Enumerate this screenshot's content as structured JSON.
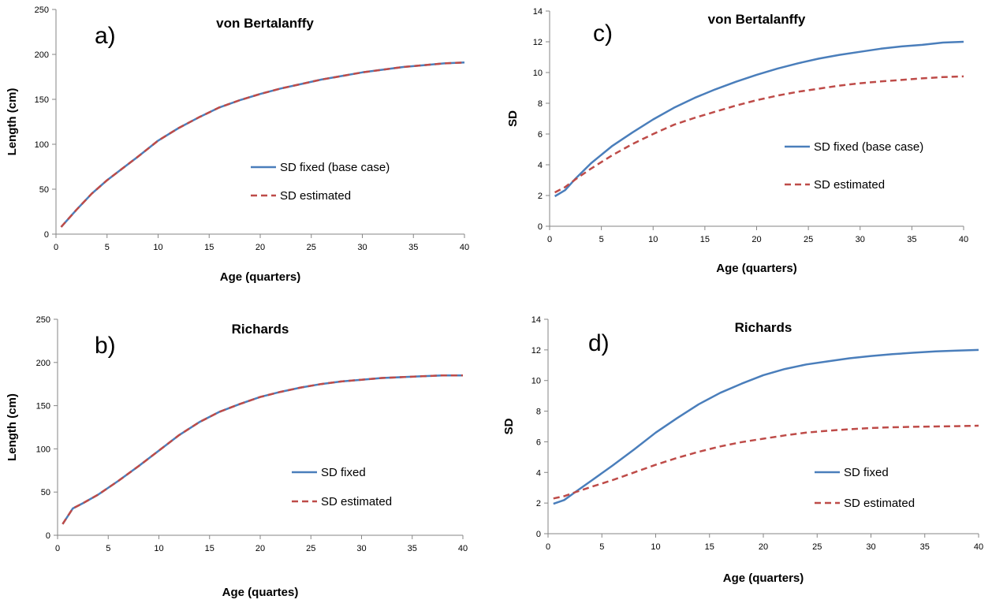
{
  "colors": {
    "fixed": "#4a7ebb",
    "estimated": "#be4b48",
    "axis": "#868686"
  },
  "charts": [
    {
      "panel_label": "a)",
      "title": "von Bertalanffy",
      "xlabel": "Age (quarters)",
      "ylabel": "Length (cm)",
      "xticks": [
        "0",
        "5",
        "10",
        "15",
        "20",
        "25",
        "30",
        "35",
        "40"
      ],
      "yticks": [
        "0",
        "50",
        "100",
        "150",
        "200",
        "250"
      ],
      "legend": [
        "SD fixed (base case)",
        "SD estimated"
      ]
    },
    {
      "panel_label": "b)",
      "title": "Richards",
      "xlabel": "Age  (quartes)",
      "ylabel": "Length (cm)",
      "xticks": [
        "0",
        "5",
        "10",
        "15",
        "20",
        "25",
        "30",
        "35",
        "40"
      ],
      "yticks": [
        "0",
        "50",
        "100",
        "150",
        "200",
        "250"
      ],
      "legend": [
        "SD fixed",
        "SD estimated"
      ]
    },
    {
      "panel_label": "c)",
      "title": "von Bertalanffy",
      "xlabel": "Age (quarters)",
      "ylabel": "SD",
      "xticks": [
        "0",
        "5",
        "10",
        "15",
        "20",
        "25",
        "30",
        "35",
        "40"
      ],
      "yticks": [
        "0",
        "2",
        "4",
        "6",
        "8",
        "10",
        "12",
        "14"
      ],
      "legend": [
        "SD fixed (base case)",
        "SD estimated"
      ]
    },
    {
      "panel_label": "d)",
      "title": "Richards",
      "xlabel": "Age (quarters)",
      "ylabel": "SD",
      "xticks": [
        "0",
        "5",
        "10",
        "15",
        "20",
        "25",
        "30",
        "35",
        "40"
      ],
      "yticks": [
        "0",
        "2",
        "4",
        "6",
        "8",
        "10",
        "12",
        "14"
      ],
      "legend": [
        "SD fixed",
        "SD estimated"
      ]
    }
  ],
  "chart_data": [
    {
      "type": "line",
      "title": "von Bertalanffy",
      "xlabel": "Age (quarters)",
      "ylabel": "Length (cm)",
      "xlim": [
        0,
        40
      ],
      "ylim": [
        0,
        250
      ],
      "legend_position": "right-middle",
      "series": [
        {
          "name": "SD fixed (base case)",
          "style": "solid",
          "x": [
            0.5,
            2,
            3.5,
            5,
            6.5,
            8,
            10,
            12,
            14,
            16,
            18,
            20,
            22,
            24,
            26,
            28,
            30,
            32,
            34,
            36,
            38,
            40
          ],
          "y": [
            8,
            27,
            45,
            60,
            73,
            86,
            104,
            118,
            130,
            141,
            149,
            156,
            162,
            167,
            172,
            176,
            180,
            183,
            186,
            188,
            190,
            191
          ]
        },
        {
          "name": "SD estimated",
          "style": "dashed",
          "x": [
            0.5,
            2,
            3.5,
            5,
            6.5,
            8,
            10,
            12,
            14,
            16,
            18,
            20,
            22,
            24,
            26,
            28,
            30,
            32,
            34,
            36,
            38,
            40
          ],
          "y": [
            8,
            27,
            45,
            60,
            73,
            86,
            104,
            118,
            130,
            141,
            149,
            156,
            162,
            167,
            172,
            176,
            180,
            183,
            186,
            188,
            190,
            191
          ]
        }
      ]
    },
    {
      "type": "line",
      "title": "Richards",
      "xlabel": "Age  (quartes)",
      "ylabel": "Length (cm)",
      "xlim": [
        0,
        40
      ],
      "ylim": [
        0,
        250
      ],
      "legend_position": "right-middle",
      "series": [
        {
          "name": "SD fixed",
          "style": "solid",
          "x": [
            0.5,
            1.5,
            2.5,
            4,
            6,
            8,
            10,
            12,
            14,
            16,
            18,
            20,
            22,
            24,
            26,
            28,
            30,
            32,
            34,
            36,
            38,
            40
          ],
          "y": [
            13,
            31,
            37,
            47,
            63,
            80,
            98,
            116,
            131,
            143,
            152,
            160,
            166,
            171,
            175,
            178,
            180,
            182,
            183,
            184,
            185,
            185
          ]
        },
        {
          "name": "SD estimated",
          "style": "dashed",
          "x": [
            0.5,
            1.5,
            2.5,
            4,
            6,
            8,
            10,
            12,
            14,
            16,
            18,
            20,
            22,
            24,
            26,
            28,
            30,
            32,
            34,
            36,
            38,
            40
          ],
          "y": [
            13,
            31,
            37,
            47,
            63,
            80,
            98,
            116,
            131,
            143,
            152,
            160,
            166,
            171,
            175,
            178,
            180,
            182,
            183,
            184,
            185,
            185
          ]
        }
      ]
    },
    {
      "type": "line",
      "title": "von Bertalanffy",
      "xlabel": "Age (quarters)",
      "ylabel": "SD",
      "xlim": [
        0,
        40
      ],
      "ylim": [
        0,
        14
      ],
      "legend_position": "right-middle",
      "series": [
        {
          "name": "SD fixed (base case)",
          "style": "solid",
          "x": [
            0.5,
            1.5,
            2.5,
            4,
            6,
            8,
            10,
            12,
            14,
            16,
            18,
            20,
            22,
            24,
            26,
            28,
            30,
            32,
            34,
            36,
            38,
            40
          ],
          "y": [
            1.95,
            2.35,
            3.1,
            4.1,
            5.2,
            6.1,
            6.95,
            7.7,
            8.35,
            8.9,
            9.4,
            9.85,
            10.25,
            10.6,
            10.9,
            11.15,
            11.35,
            11.55,
            11.7,
            11.8,
            11.95,
            12.0
          ]
        },
        {
          "name": "SD estimated",
          "style": "dashed",
          "x": [
            0.5,
            1.5,
            2.5,
            4,
            6,
            8,
            10,
            12,
            14,
            16,
            18,
            20,
            22,
            24,
            26,
            28,
            30,
            32,
            34,
            36,
            38,
            40
          ],
          "y": [
            2.2,
            2.55,
            3.05,
            3.75,
            4.6,
            5.35,
            6.0,
            6.6,
            7.05,
            7.45,
            7.85,
            8.2,
            8.5,
            8.75,
            8.95,
            9.15,
            9.3,
            9.42,
            9.52,
            9.62,
            9.7,
            9.75
          ]
        }
      ]
    },
    {
      "type": "line",
      "title": "Richards",
      "xlabel": "Age (quarters)",
      "ylabel": "SD",
      "xlim": [
        0,
        40
      ],
      "ylim": [
        0,
        14
      ],
      "legend_position": "right-middle",
      "series": [
        {
          "name": "SD fixed",
          "style": "solid",
          "x": [
            0.5,
            1.5,
            2.5,
            4,
            6,
            8,
            10,
            12,
            14,
            16,
            18,
            20,
            22,
            24,
            26,
            28,
            30,
            32,
            34,
            36,
            38,
            40
          ],
          "y": [
            1.95,
            2.2,
            2.7,
            3.45,
            4.45,
            5.5,
            6.6,
            7.55,
            8.45,
            9.2,
            9.8,
            10.35,
            10.75,
            11.05,
            11.25,
            11.45,
            11.6,
            11.72,
            11.82,
            11.9,
            11.95,
            12.0
          ]
        },
        {
          "name": "SD estimated",
          "style": "dashed",
          "x": [
            0.5,
            1.5,
            2.5,
            4,
            6,
            8,
            10,
            12,
            14,
            16,
            18,
            20,
            22,
            24,
            26,
            28,
            30,
            32,
            34,
            36,
            38,
            40
          ],
          "y": [
            2.3,
            2.45,
            2.7,
            3.05,
            3.5,
            4.0,
            4.5,
            4.95,
            5.35,
            5.7,
            5.98,
            6.2,
            6.42,
            6.6,
            6.72,
            6.82,
            6.9,
            6.95,
            6.98,
            7.0,
            7.02,
            7.05
          ]
        }
      ]
    }
  ]
}
